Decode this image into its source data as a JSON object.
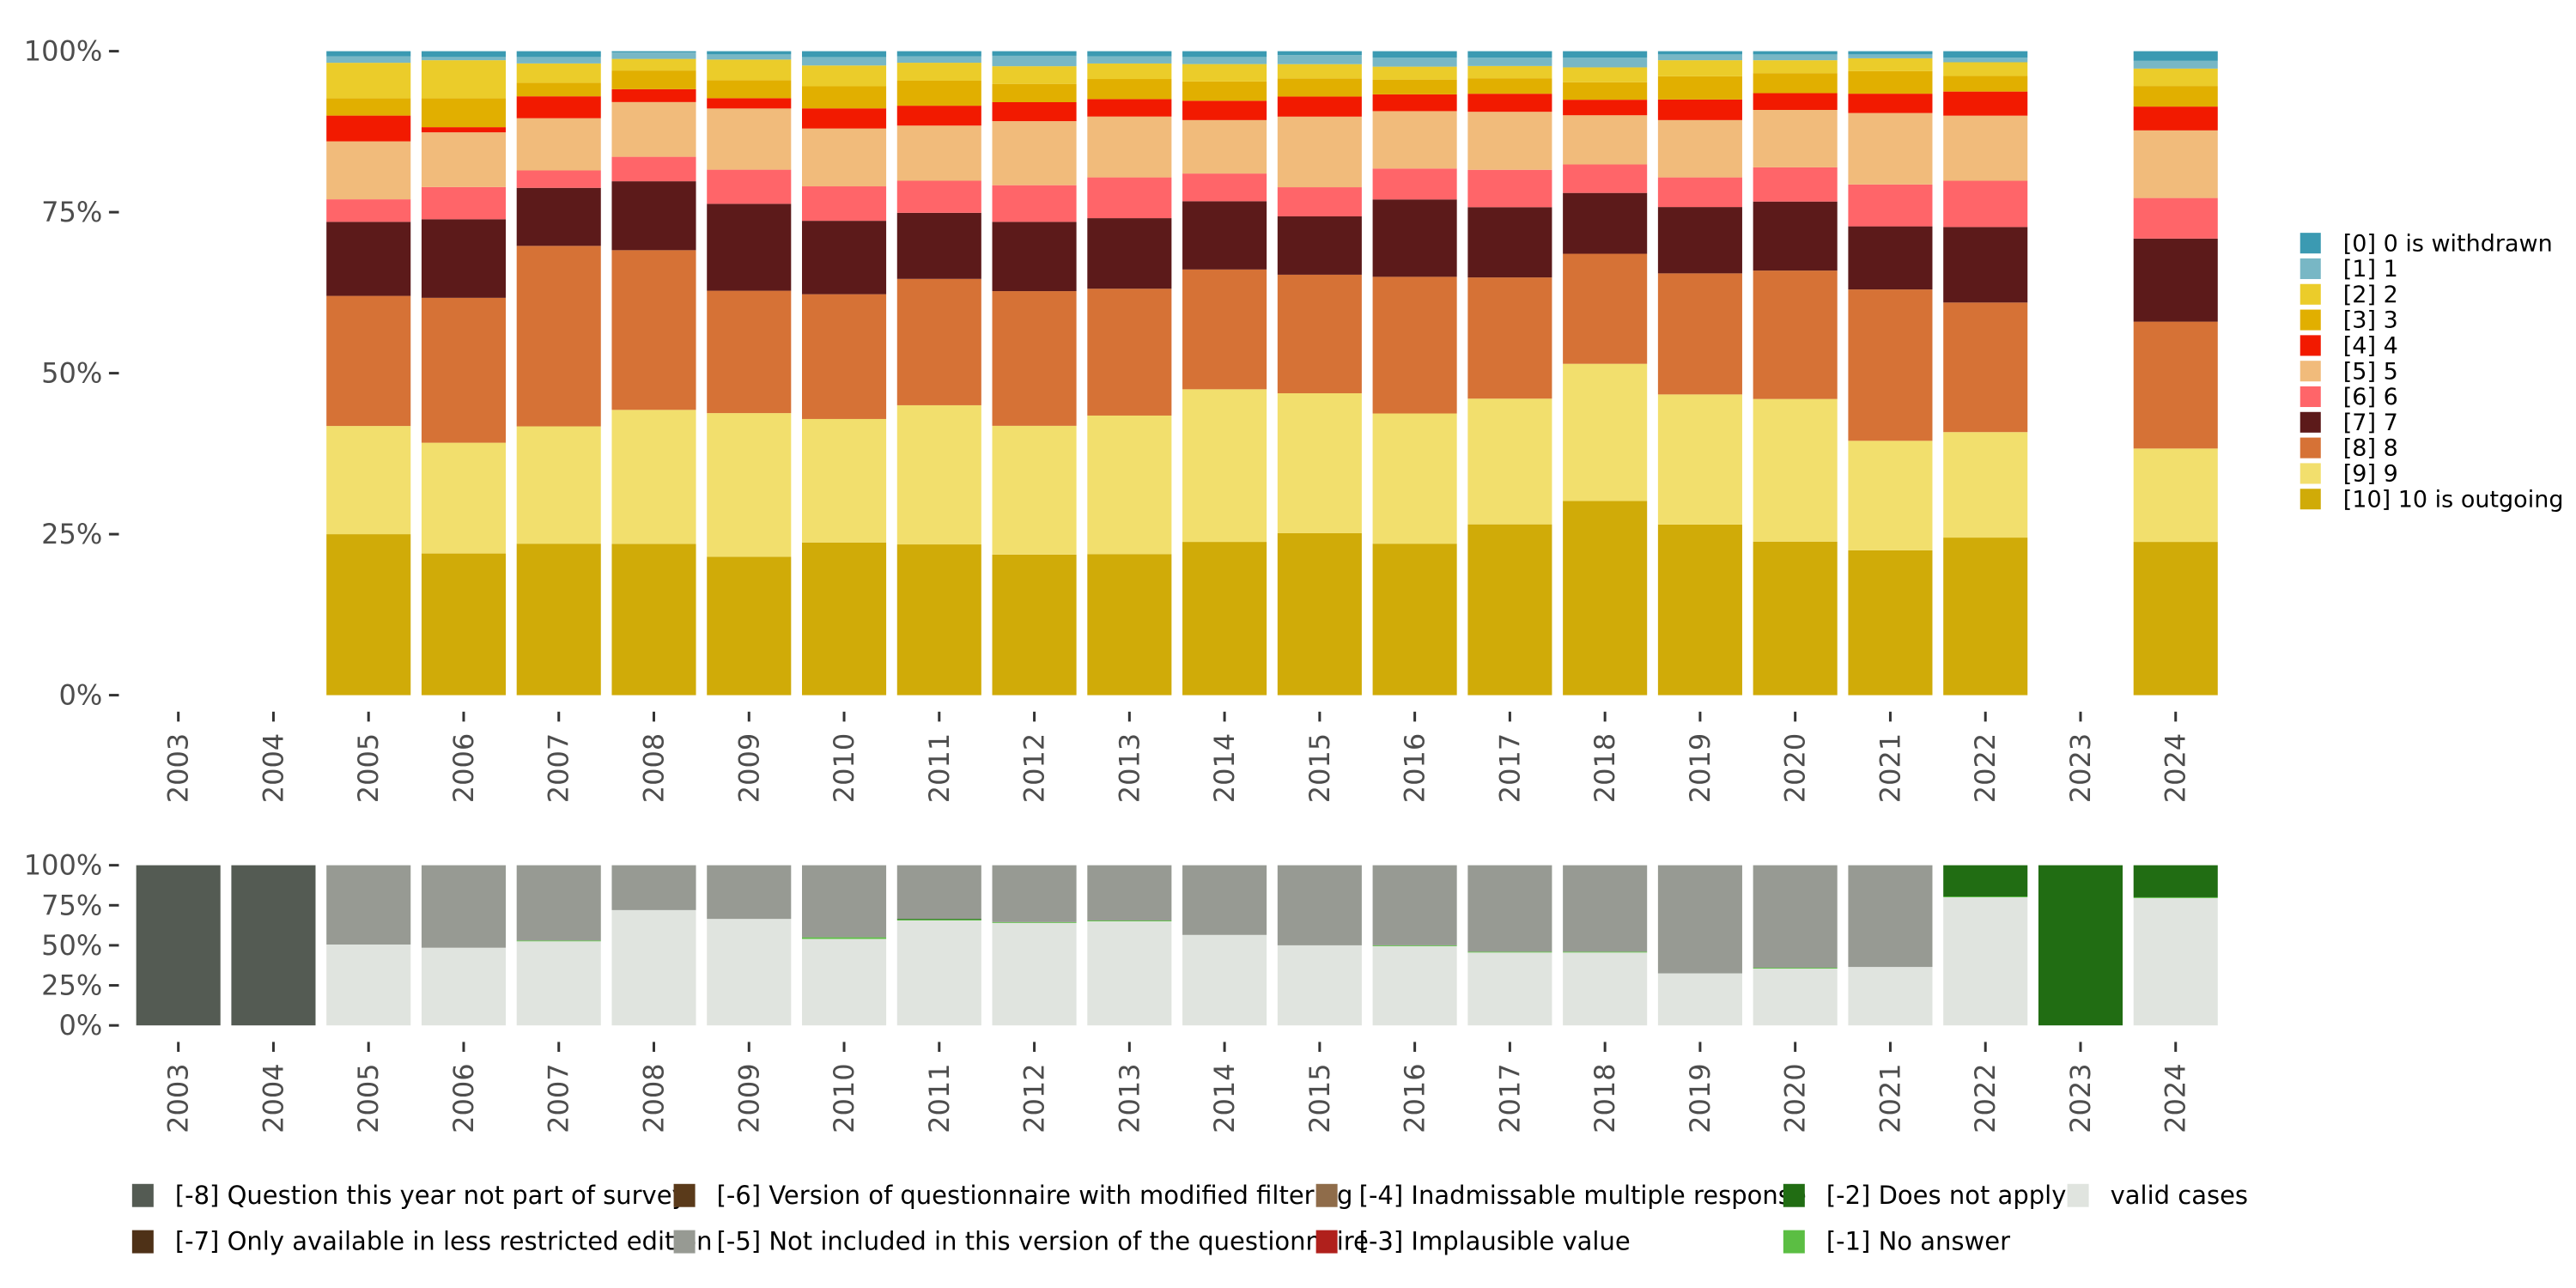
{
  "chart_data": [
    {
      "type": "bar",
      "stacked": true,
      "title": "",
      "xlabel": "",
      "ylabel": "",
      "ylim": [
        0,
        1
      ],
      "yticks": [
        "0%",
        "25%",
        "50%",
        "75%",
        "100%"
      ],
      "categories": [
        "2003",
        "2004",
        "2005",
        "2006",
        "2007",
        "2008",
        "2009",
        "2010",
        "2011",
        "2012",
        "2013",
        "2014",
        "2015",
        "2016",
        "2017",
        "2018",
        "2019",
        "2020",
        "2021",
        "2022",
        "2023",
        "2024"
      ],
      "legend_position": "right",
      "series": [
        {
          "name": "[10] 10 is outgoing",
          "color": "#D0AB08",
          "values": [
            null,
            null,
            25.0,
            22.0,
            23.5,
            23.5,
            21.5,
            23.5,
            23.5,
            21.5,
            21.8,
            23.8,
            25.0,
            23.5,
            26.5,
            30.0,
            26.5,
            23.8,
            22.5,
            24.2,
            null,
            23.8
          ]
        },
        {
          "name": "[9] 9",
          "color": "#F2DF6D",
          "values": [
            null,
            null,
            16.8,
            17.2,
            18.2,
            20.8,
            22.3,
            19.0,
            21.7,
            19.7,
            21.4,
            23.7,
            21.6,
            20.2,
            19.5,
            21.2,
            20.2,
            22.1,
            17.0,
            16.2,
            null,
            14.5
          ]
        },
        {
          "name": "[8] 8",
          "color": "#D67236",
          "values": [
            null,
            null,
            20.2,
            22.5,
            28.0,
            24.8,
            19.0,
            19.2,
            19.7,
            20.6,
            19.6,
            18.6,
            18.3,
            21.2,
            18.8,
            17.0,
            18.8,
            19.9,
            23.5,
            19.9,
            null,
            19.7
          ]
        },
        {
          "name": "[7] 7",
          "color": "#5C1A1A",
          "values": [
            null,
            null,
            11.5,
            12.2,
            9.0,
            10.7,
            13.5,
            11.3,
            10.3,
            10.6,
            10.9,
            10.6,
            9.0,
            12.0,
            10.9,
            9.4,
            10.3,
            10.7,
            9.8,
            11.6,
            null,
            12.9
          ]
        },
        {
          "name": "[6] 6",
          "color": "#FF6569",
          "values": [
            null,
            null,
            3.5,
            5.0,
            2.7,
            3.8,
            5.3,
            5.3,
            5.0,
            5.6,
            6.3,
            4.3,
            4.5,
            4.8,
            5.8,
            4.4,
            4.6,
            5.3,
            6.5,
            7.1,
            null,
            6.3
          ]
        },
        {
          "name": "[5] 5",
          "color": "#F1BB7B",
          "values": [
            null,
            null,
            9.0,
            8.5,
            8.1,
            8.5,
            9.5,
            8.9,
            8.6,
            9.8,
            9.4,
            8.3,
            10.9,
            8.9,
            9.0,
            7.6,
            8.9,
            8.9,
            11.1,
            10.0,
            null,
            10.5
          ]
        },
        {
          "name": "[4] 4",
          "color": "#F21A00",
          "values": [
            null,
            null,
            4.0,
            0.8,
            3.4,
            2.0,
            1.6,
            3.1,
            3.1,
            2.9,
            2.7,
            3.0,
            3.1,
            2.6,
            2.8,
            2.4,
            3.2,
            2.6,
            3.0,
            3.7,
            null,
            3.7
          ]
        },
        {
          "name": "[3] 3",
          "color": "#E1AF00",
          "values": [
            null,
            null,
            2.7,
            4.5,
            2.1,
            2.9,
            2.8,
            3.4,
            3.9,
            2.8,
            3.1,
            3.0,
            2.8,
            2.3,
            2.4,
            2.7,
            3.6,
            3.1,
            3.5,
            2.4,
            null,
            3.2
          ]
        },
        {
          "name": "[2] 2",
          "color": "#EBCC2A",
          "values": [
            null,
            null,
            5.5,
            5.9,
            3.0,
            1.8,
            3.2,
            3.2,
            2.8,
            2.7,
            2.4,
            2.7,
            2.2,
            2.0,
            1.9,
            2.3,
            2.5,
            2.0,
            2.0,
            2.1,
            null,
            2.7
          ]
        },
        {
          "name": "[1] 1",
          "color": "#78B7C5",
          "values": [
            null,
            null,
            1.0,
            0.5,
            1.0,
            1.0,
            0.8,
            1.3,
            1.0,
            1.6,
            1.1,
            1.1,
            1.4,
            1.4,
            1.3,
            1.5,
            0.9,
            0.9,
            0.6,
            0.7,
            null,
            1.2
          ]
        },
        {
          "name": "[0] 0 is withdrawn",
          "color": "#3B9AB2",
          "values": [
            null,
            null,
            0.8,
            0.9,
            0.9,
            0.2,
            0.5,
            0.9,
            0.8,
            0.7,
            0.8,
            0.9,
            0.6,
            1.0,
            1.0,
            1.0,
            0.5,
            0.5,
            0.5,
            1.0,
            null,
            1.5
          ]
        }
      ]
    },
    {
      "type": "bar",
      "stacked": true,
      "title": "",
      "xlabel": "",
      "ylabel": "",
      "ylim": [
        0,
        1
      ],
      "yticks": [
        "0%",
        "25%",
        "50%",
        "75%",
        "100%"
      ],
      "categories": [
        "2003",
        "2004",
        "2005",
        "2006",
        "2007",
        "2008",
        "2009",
        "2010",
        "2011",
        "2012",
        "2013",
        "2014",
        "2015",
        "2016",
        "2017",
        "2018",
        "2019",
        "2020",
        "2021",
        "2022",
        "2023",
        "2024"
      ],
      "legend_position": "bottom",
      "series": [
        {
          "name": "valid cases",
          "color": "#E0E4DF",
          "values": [
            0,
            0,
            50.5,
            48.5,
            52.5,
            72,
            66.5,
            54,
            65.5,
            64,
            65,
            56.5,
            50,
            49.5,
            45.5,
            45.5,
            32.5,
            35.5,
            36.5,
            80,
            0,
            79.5
          ]
        },
        {
          "name": "[-1] No answer",
          "color": "#5BBE43",
          "values": [
            0,
            0,
            0,
            0,
            0.5,
            0,
            0,
            1,
            0.5,
            0.5,
            0.5,
            0,
            0,
            0.5,
            0.5,
            0.5,
            0,
            0.5,
            0,
            0.5,
            0,
            0.5
          ]
        },
        {
          "name": "[-2] Does not apply",
          "color": "#216D13",
          "values": [
            0,
            0,
            0,
            0,
            0,
            0,
            0,
            0,
            0.5,
            0,
            0,
            0,
            0,
            0,
            0,
            0,
            0,
            0,
            0,
            19.5,
            100,
            20
          ]
        },
        {
          "name": "[-3] Implausible value",
          "color": "#B0201C",
          "values": [
            0,
            0,
            0,
            0,
            0,
            0,
            0,
            0,
            0,
            0,
            0,
            0,
            0,
            0,
            0,
            0,
            0,
            0,
            0,
            0,
            0,
            0
          ]
        },
        {
          "name": "[-4] Inadmissable multiple response",
          "color": "#8F6C4A",
          "values": [
            0,
            0,
            0,
            0,
            0,
            0,
            0,
            0,
            0,
            0,
            0,
            0,
            0,
            0,
            0,
            0,
            0,
            0,
            0,
            0,
            0,
            0
          ]
        },
        {
          "name": "[-5] Not included in this version of the questionnaire",
          "color": "#979A93",
          "values": [
            0,
            0,
            49.5,
            51.5,
            47,
            28,
            33.5,
            45,
            33.5,
            35.5,
            34.5,
            43.5,
            50,
            50,
            54,
            54,
            67.5,
            64,
            63.5,
            0,
            0,
            0
          ]
        },
        {
          "name": "[-6] Version of questionnaire with modified filtering",
          "color": "#5A3A1A",
          "values": [
            0,
            0,
            0,
            0,
            0,
            0,
            0,
            0,
            0,
            0,
            0,
            0,
            0,
            0,
            0,
            0,
            0,
            0,
            0,
            0,
            0,
            0
          ]
        },
        {
          "name": "[-7] Only available in less restricted edition",
          "color": "#4E3117",
          "values": [
            0,
            0,
            0,
            0,
            0,
            0,
            0,
            0,
            0,
            0,
            0,
            0,
            0,
            0,
            0,
            0,
            0,
            0,
            0,
            0,
            0,
            0
          ]
        },
        {
          "name": "[-8] Question this year not part of survey",
          "color": "#545B53",
          "values": [
            100,
            100,
            0,
            0,
            0,
            0,
            0,
            0,
            0,
            0,
            0,
            0,
            0,
            0,
            0,
            0,
            0,
            0,
            0,
            0,
            0,
            0
          ]
        }
      ],
      "legend_order": [
        "[-8] Question this year not part of survey",
        "[-7] Only available in less restricted edition",
        "[-6] Version of questionnaire with modified filtering",
        "[-5] Not included in this version of the questionnaire",
        "[-4] Inadmissable multiple response",
        "[-3] Implausible value",
        "[-2] Does not apply",
        "[-1] No answer",
        "valid cases"
      ]
    }
  ]
}
